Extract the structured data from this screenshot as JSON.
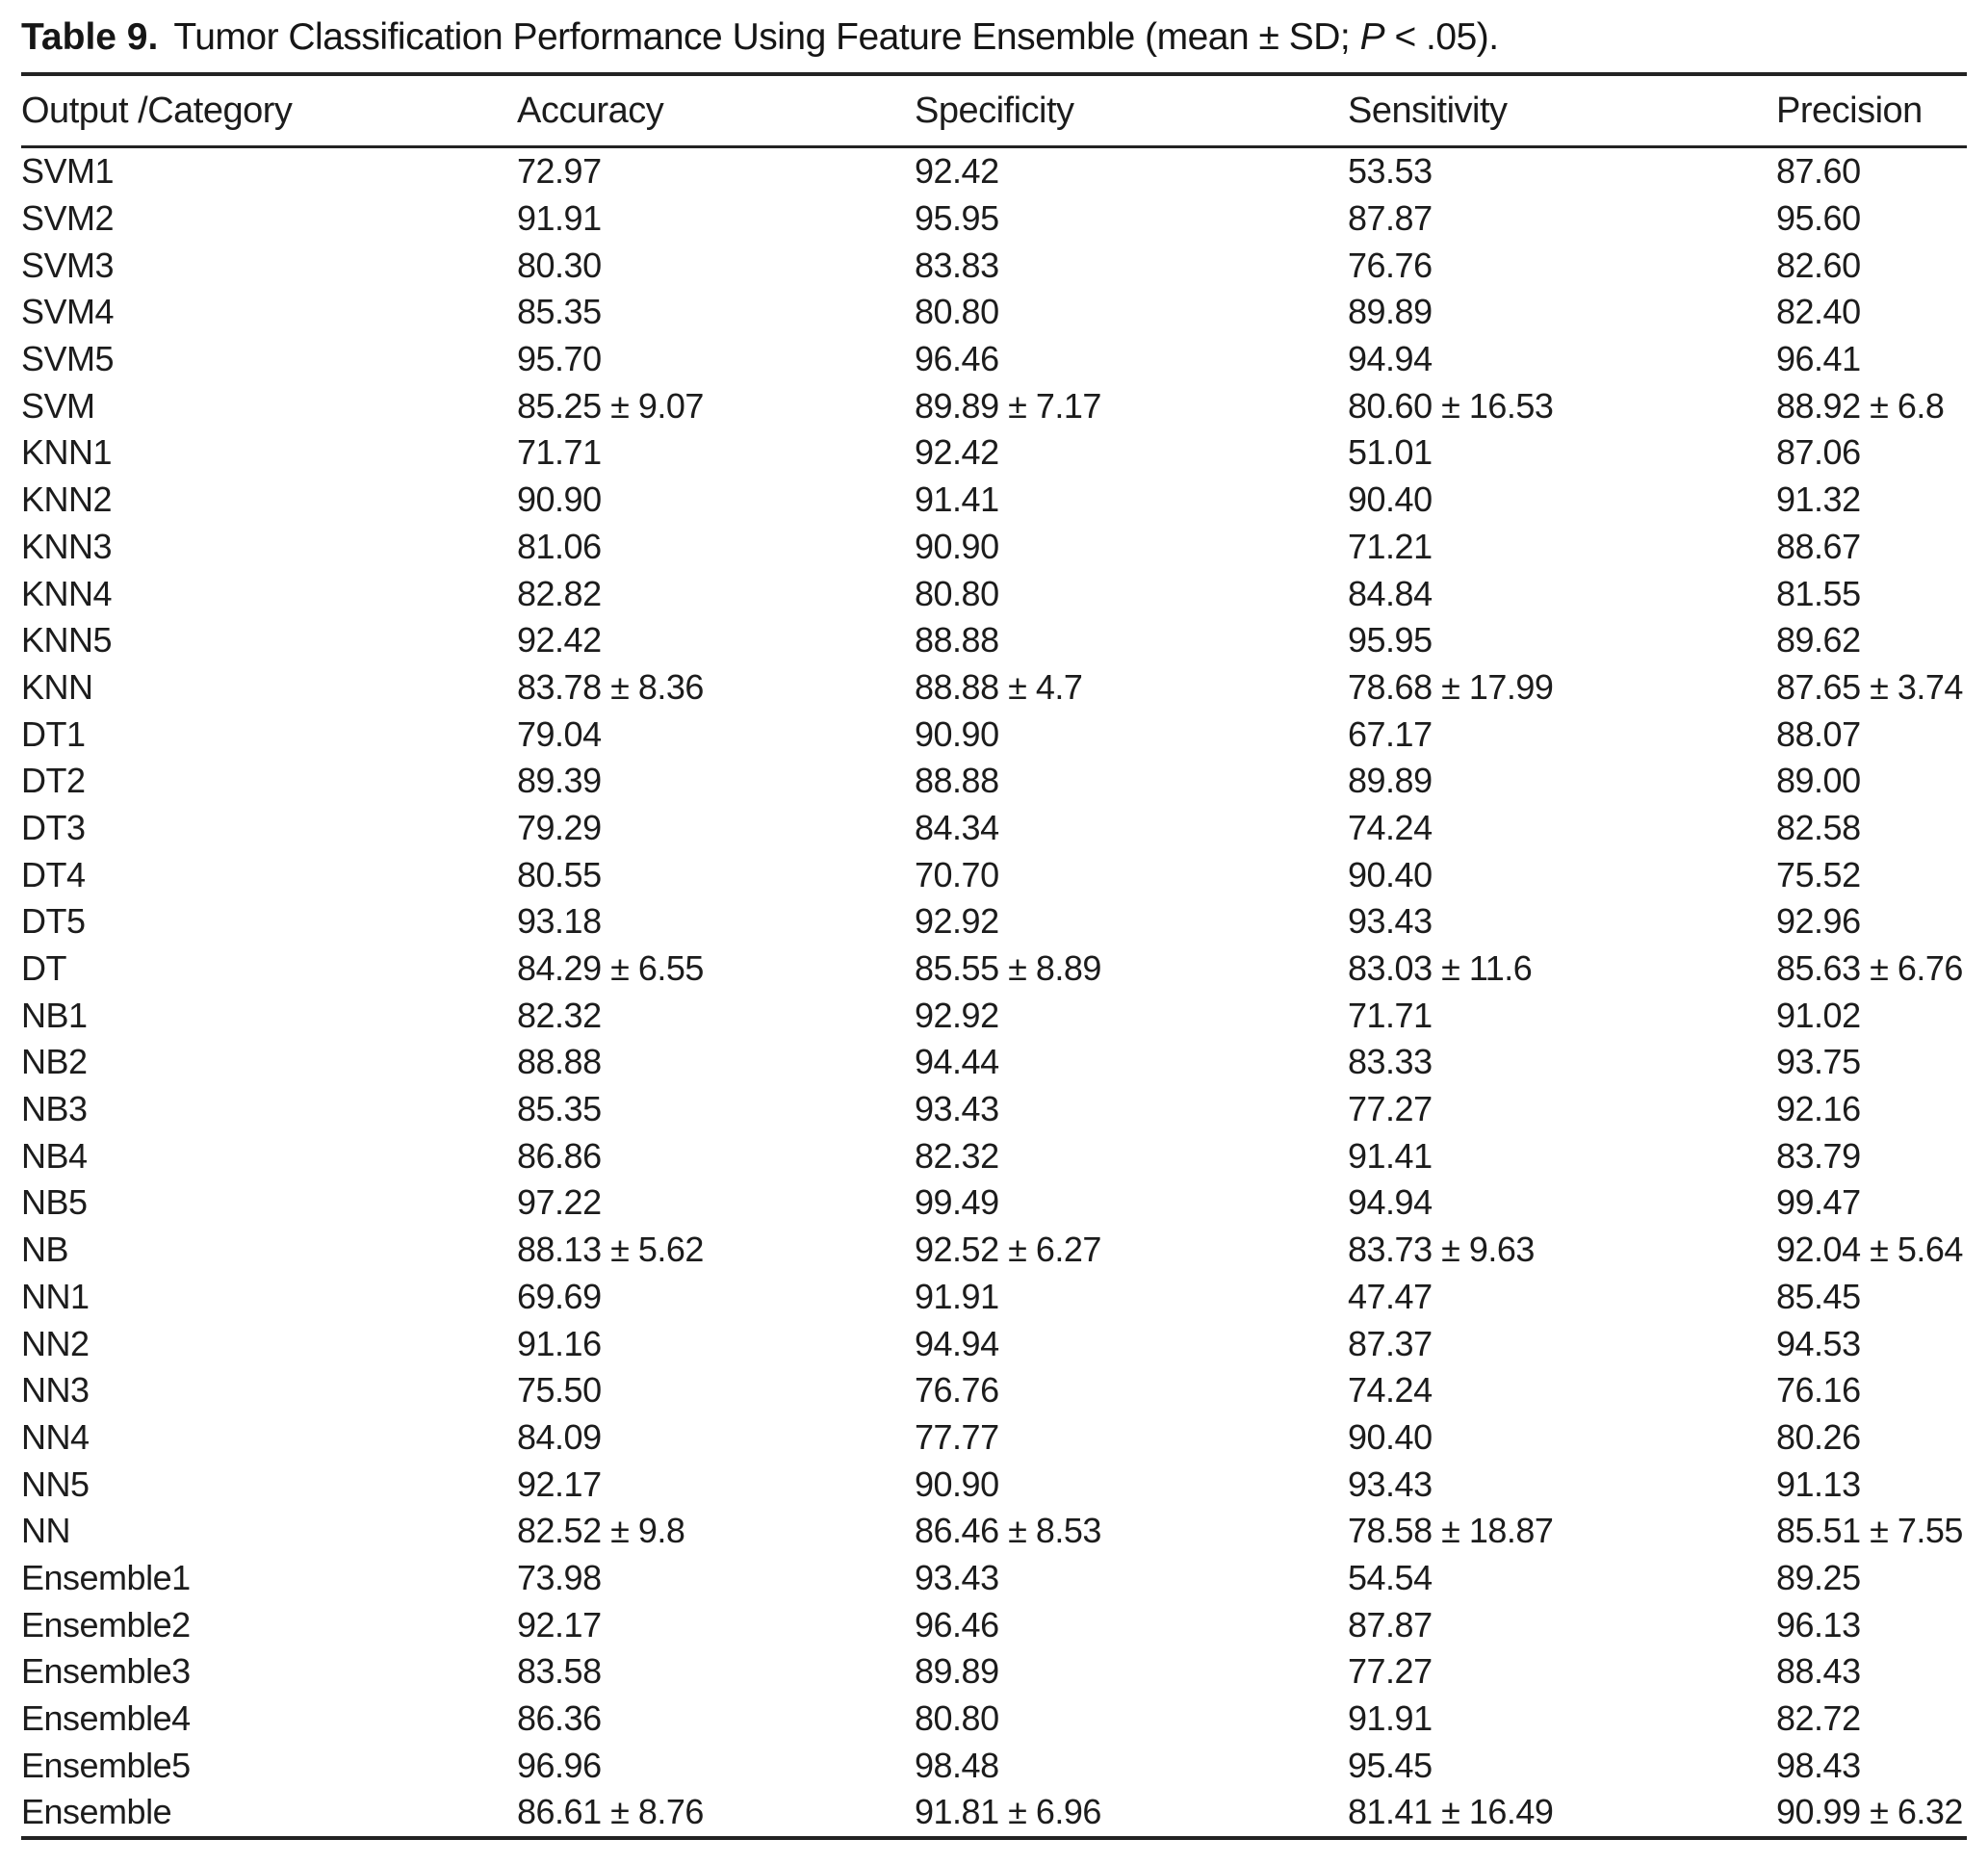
{
  "page": {
    "background": "#ffffff",
    "text_color": "#1c1c1c",
    "rule_color": "#222222"
  },
  "table": {
    "label": "Table 9.",
    "caption_before": "Tumor Classification Performance Using Feature Ensemble (mean ± SD; ",
    "caption_italic": "P",
    "caption_after": " < .05).",
    "columns": [
      "Output /Category",
      "Accuracy",
      "Specificity",
      "Sensitivity",
      "Precision"
    ],
    "column_keys": [
      "category",
      "accuracy",
      "specificity",
      "sensitivity",
      "precision"
    ],
    "rows": [
      {
        "category": "SVM1",
        "accuracy": "72.97",
        "specificity": "92.42",
        "sensitivity": "53.53",
        "precision": "87.60"
      },
      {
        "category": "SVM2",
        "accuracy": "91.91",
        "specificity": "95.95",
        "sensitivity": "87.87",
        "precision": "95.60"
      },
      {
        "category": "SVM3",
        "accuracy": "80.30",
        "specificity": "83.83",
        "sensitivity": "76.76",
        "precision": "82.60"
      },
      {
        "category": "SVM4",
        "accuracy": "85.35",
        "specificity": "80.80",
        "sensitivity": "89.89",
        "precision": "82.40"
      },
      {
        "category": "SVM5",
        "accuracy": "95.70",
        "specificity": "96.46",
        "sensitivity": "94.94",
        "precision": "96.41"
      },
      {
        "category": "SVM",
        "accuracy": "85.25 ± 9.07",
        "specificity": "89.89 ± 7.17",
        "sensitivity": "80.60 ± 16.53",
        "precision": "88.92 ± 6.8"
      },
      {
        "category": "KNN1",
        "accuracy": "71.71",
        "specificity": "92.42",
        "sensitivity": "51.01",
        "precision": "87.06"
      },
      {
        "category": "KNN2",
        "accuracy": "90.90",
        "specificity": "91.41",
        "sensitivity": "90.40",
        "precision": "91.32"
      },
      {
        "category": "KNN3",
        "accuracy": "81.06",
        "specificity": "90.90",
        "sensitivity": "71.21",
        "precision": "88.67"
      },
      {
        "category": "KNN4",
        "accuracy": "82.82",
        "specificity": "80.80",
        "sensitivity": "84.84",
        "precision": "81.55"
      },
      {
        "category": "KNN5",
        "accuracy": "92.42",
        "specificity": "88.88",
        "sensitivity": "95.95",
        "precision": "89.62"
      },
      {
        "category": "KNN",
        "accuracy": "83.78 ± 8.36",
        "specificity": "88.88 ± 4.7",
        "sensitivity": "78.68 ± 17.99",
        "precision": "87.65 ± 3.74"
      },
      {
        "category": "DT1",
        "accuracy": "79.04",
        "specificity": "90.90",
        "sensitivity": "67.17",
        "precision": "88.07"
      },
      {
        "category": "DT2",
        "accuracy": "89.39",
        "specificity": "88.88",
        "sensitivity": "89.89",
        "precision": "89.00"
      },
      {
        "category": "DT3",
        "accuracy": "79.29",
        "specificity": "84.34",
        "sensitivity": "74.24",
        "precision": "82.58"
      },
      {
        "category": "DT4",
        "accuracy": "80.55",
        "specificity": "70.70",
        "sensitivity": "90.40",
        "precision": "75.52"
      },
      {
        "category": "DT5",
        "accuracy": "93.18",
        "specificity": "92.92",
        "sensitivity": "93.43",
        "precision": "92.96"
      },
      {
        "category": "DT",
        "accuracy": "84.29 ± 6.55",
        "specificity": "85.55 ± 8.89",
        "sensitivity": "83.03 ± 11.6",
        "precision": "85.63 ± 6.76"
      },
      {
        "category": "NB1",
        "accuracy": "82.32",
        "specificity": "92.92",
        "sensitivity": "71.71",
        "precision": "91.02"
      },
      {
        "category": "NB2",
        "accuracy": "88.88",
        "specificity": "94.44",
        "sensitivity": "83.33",
        "precision": "93.75"
      },
      {
        "category": "NB3",
        "accuracy": "85.35",
        "specificity": "93.43",
        "sensitivity": "77.27",
        "precision": "92.16"
      },
      {
        "category": "NB4",
        "accuracy": "86.86",
        "specificity": "82.32",
        "sensitivity": "91.41",
        "precision": "83.79"
      },
      {
        "category": "NB5",
        "accuracy": "97.22",
        "specificity": "99.49",
        "sensitivity": "94.94",
        "precision": "99.47"
      },
      {
        "category": "NB",
        "accuracy": "88.13 ± 5.62",
        "specificity": "92.52 ± 6.27",
        "sensitivity": "83.73 ± 9.63",
        "precision": "92.04 ± 5.64"
      },
      {
        "category": "NN1",
        "accuracy": "69.69",
        "specificity": "91.91",
        "sensitivity": "47.47",
        "precision": "85.45"
      },
      {
        "category": "NN2",
        "accuracy": "91.16",
        "specificity": "94.94",
        "sensitivity": "87.37",
        "precision": "94.53"
      },
      {
        "category": "NN3",
        "accuracy": "75.50",
        "specificity": "76.76",
        "sensitivity": "74.24",
        "precision": "76.16"
      },
      {
        "category": "NN4",
        "accuracy": "84.09",
        "specificity": "77.77",
        "sensitivity": "90.40",
        "precision": "80.26"
      },
      {
        "category": "NN5",
        "accuracy": "92.17",
        "specificity": "90.90",
        "sensitivity": "93.43",
        "precision": "91.13"
      },
      {
        "category": "NN",
        "accuracy": "82.52 ± 9.8",
        "specificity": "86.46 ± 8.53",
        "sensitivity": "78.58 ± 18.87",
        "precision": "85.51 ± 7.55"
      },
      {
        "category": "Ensemble1",
        "accuracy": "73.98",
        "specificity": "93.43",
        "sensitivity": "54.54",
        "precision": "89.25"
      },
      {
        "category": "Ensemble2",
        "accuracy": "92.17",
        "specificity": "96.46",
        "sensitivity": "87.87",
        "precision": "96.13"
      },
      {
        "category": "Ensemble3",
        "accuracy": "83.58",
        "specificity": "89.89",
        "sensitivity": "77.27",
        "precision": "88.43"
      },
      {
        "category": "Ensemble4",
        "accuracy": "86.36",
        "specificity": "80.80",
        "sensitivity": "91.91",
        "precision": "82.72"
      },
      {
        "category": "Ensemble5",
        "accuracy": "96.96",
        "specificity": "98.48",
        "sensitivity": "95.45",
        "precision": "98.43"
      },
      {
        "category": "Ensemble",
        "accuracy": "86.61 ± 8.76",
        "specificity": "91.81 ± 6.96",
        "sensitivity": "81.41 ± 16.49",
        "precision": "90.99 ± 6.32"
      }
    ]
  }
}
